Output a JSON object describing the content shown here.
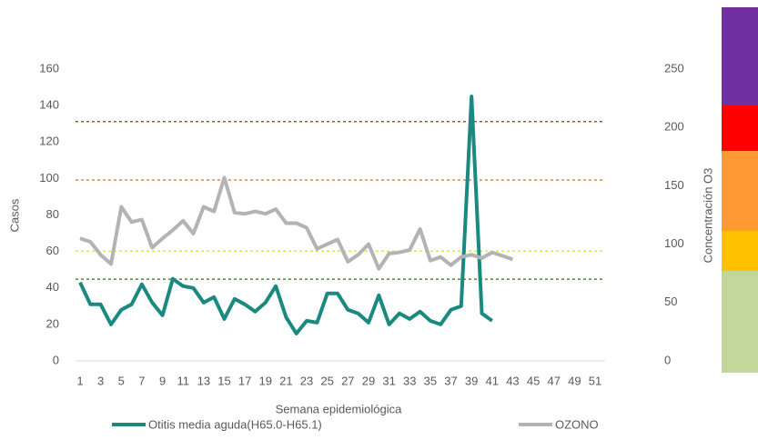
{
  "chart_data": {
    "type": "line",
    "xlabel": "Semana epidemiológica",
    "ylabel": "Casos",
    "y2label": "Concentración O3",
    "categories": [
      "1",
      null,
      "3",
      null,
      "5",
      null,
      "7",
      null,
      "9",
      null,
      "11",
      null,
      "13",
      null,
      "15",
      null,
      "17",
      null,
      "19",
      null,
      "21",
      null,
      "23",
      null,
      "25",
      null,
      "27",
      null,
      "29",
      null,
      "31",
      null,
      "33",
      null,
      "35",
      null,
      "37",
      null,
      "39",
      null,
      "41",
      null,
      "43",
      null,
      "45",
      null,
      "47",
      null,
      "49",
      null,
      "51",
      null
    ],
    "ylim": [
      0,
      160
    ],
    "yticks": [
      0,
      20,
      40,
      60,
      80,
      100,
      120,
      140,
      160
    ],
    "y2lim": [
      0,
      250
    ],
    "y2ticks": [
      0,
      50,
      100,
      150,
      200,
      250
    ],
    "reference_lines": [
      {
        "value": 205,
        "color": "#e03a2a",
        "axis": "y2"
      },
      {
        "value": 155,
        "color": "#e8823c",
        "axis": "y2"
      },
      {
        "value": 94,
        "color": "#e6e63a",
        "axis": "y2"
      },
      {
        "value": 70,
        "color": "#4f8a34",
        "axis": "y2"
      }
    ],
    "legend": "bottom",
    "series": [
      {
        "name": "Otitis media aguda(H65.0-H65.1)",
        "color": "#1a8a80",
        "values": [
          43,
          31,
          31,
          20,
          28,
          31,
          42,
          32,
          25,
          45,
          41,
          40,
          32,
          35,
          23,
          34,
          31,
          27,
          32,
          41,
          24,
          15,
          22,
          21,
          37,
          37,
          28,
          26,
          21,
          36,
          20,
          26,
          23,
          27,
          22,
          20,
          28,
          30,
          145,
          26,
          22,
          null,
          null,
          null,
          null,
          null,
          null,
          null,
          null,
          null,
          null,
          null
        ]
      },
      {
        "name": "OZONO",
        "color": "#b3b3b3",
        "axis": "y2",
        "values": [
          105,
          102,
          91,
          83,
          132,
          119,
          121,
          97,
          105,
          112,
          120,
          109,
          132,
          128,
          157,
          127,
          126,
          128,
          126,
          130,
          118,
          118,
          114,
          96,
          100,
          104,
          85,
          91,
          100,
          79,
          92,
          93,
          95,
          113,
          86,
          89,
          82,
          89,
          91,
          88,
          93,
          90,
          87,
          null,
          null,
          null,
          null,
          null,
          null,
          null,
          null,
          null
        ]
      }
    ]
  }
}
